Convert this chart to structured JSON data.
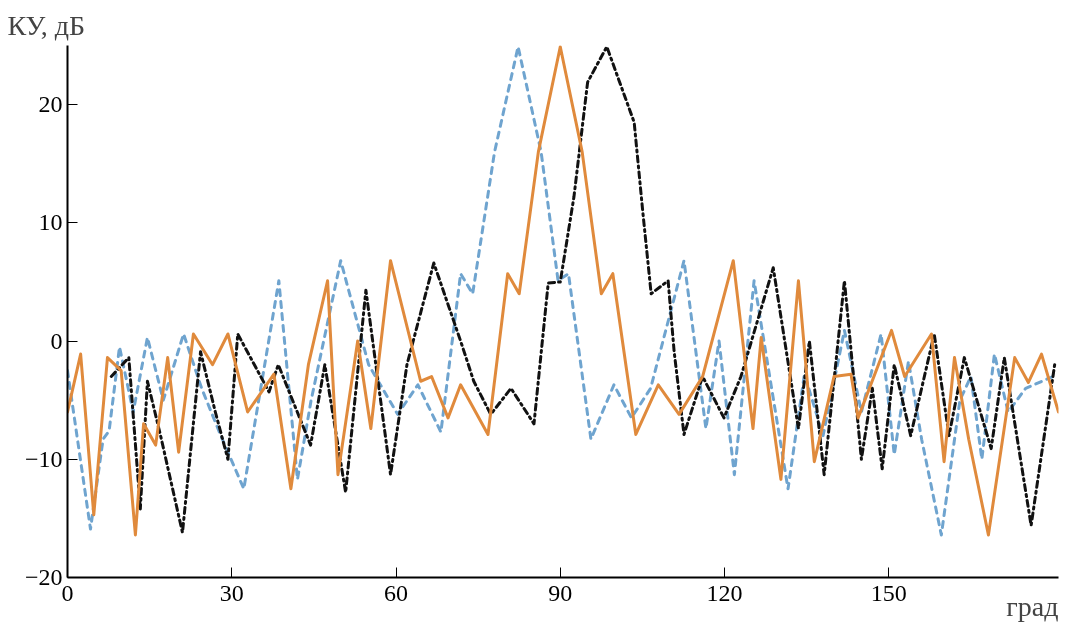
{
  "chart_data": {
    "type": "line",
    "xlabel": "град",
    "ylabel": "КУ, дБ",
    "xlim": [
      0,
      181
    ],
    "xticks": [
      0,
      30,
      60,
      90,
      120,
      150
    ],
    "ylim": [
      -20,
      25
    ],
    "yticks": [
      -20,
      -10,
      0,
      10,
      20
    ],
    "grid": false,
    "marker": "none",
    "series": [
      {
        "color": "#6fa4cf",
        "line_style": "dashed",
        "x": [
          0,
          4.2,
          6.5,
          7.6,
          9.5,
          12,
          14.6,
          17.5,
          21.2,
          24.5,
          28,
          32.2,
          38.6,
          42,
          44.5,
          49.9,
          55,
          60.3,
          64,
          68.2,
          71.8,
          74,
          78,
          82.3,
          86.5,
          89.6,
          91.5,
          95.6,
          99.8,
          103,
          106.5,
          112.6,
          116.6,
          119,
          121.8,
          125.4,
          131.6,
          134.6,
          138,
          141.9,
          145,
          148.6,
          151,
          153.6,
          156,
          159.6,
          163,
          165,
          167,
          169.3,
          171.8,
          175,
          180
        ],
        "values": [
          -2.5,
          -15.9,
          -8.3,
          -7.6,
          -0.5,
          -6,
          0.3,
          -5,
          0.6,
          -4,
          -8,
          -12.5,
          5.1,
          -11.7,
          -5,
          6.8,
          -2,
          -6.2,
          -3.7,
          -7.7,
          5.7,
          4,
          16,
          24.9,
          16,
          5.1,
          5.7,
          -8.3,
          -3.7,
          -6.5,
          -4,
          6.8,
          -7.4,
          0,
          -11.3,
          5.1,
          -12.5,
          -2.8,
          -8,
          0.9,
          -6,
          0.6,
          -9.6,
          -1.7,
          -8.3,
          -16.4,
          -5,
          -3,
          -10,
          -1.1,
          -6,
          -4,
          -3
        ]
      },
      {
        "color": "#111111",
        "line_style": "dashdot",
        "x": [
          8,
          11.2,
          13.3,
          14.6,
          17,
          21,
          24.3,
          27,
          29.3,
          31.1,
          36.8,
          38.5,
          44.4,
          47,
          50.8,
          54.5,
          59,
          62,
          66.9,
          71.8,
          74.2,
          77.3,
          81,
          85.2,
          87.8,
          90,
          92.5,
          95,
          98.5,
          103.5,
          105.1,
          106.6,
          109.7,
          110.8,
          112.6,
          116,
          119.9,
          123,
          128.9,
          133.5,
          135.5,
          138.2,
          141.9,
          145,
          147,
          148.8,
          151,
          154,
          158.3,
          161,
          163.8,
          168.7,
          171.1,
          176,
          180.3
        ],
        "values": [
          -3,
          -1.4,
          -14.2,
          -3.4,
          -8,
          -16.2,
          -0.9,
          -6,
          -10,
          0.6,
          -4.3,
          -2,
          -8.8,
          -2,
          -12.8,
          4.3,
          -11.3,
          -2,
          6.6,
          0,
          -3.4,
          -6.2,
          -4,
          -7,
          4.9,
          5,
          12.2,
          21.9,
          24.9,
          18.5,
          10.8,
          4,
          5.1,
          -0.9,
          -7.9,
          -3,
          -6.5,
          -3,
          6.2,
          -7.4,
          0,
          -11.3,
          5.1,
          -10,
          -4,
          -10.8,
          -2,
          -8,
          0.6,
          -8,
          -1.4,
          -9.1,
          -1.4,
          -15.6,
          -2
        ]
      },
      {
        "color": "#e08a3c",
        "line_style": "solid",
        "x": [
          0,
          2.4,
          4.8,
          7.3,
          9.8,
          12.4,
          13.9,
          16.1,
          18.3,
          20.3,
          23,
          26.5,
          29.3,
          32.9,
          37.7,
          40.8,
          44,
          47.5,
          49.4,
          53,
          55.4,
          59,
          64.5,
          66.5,
          69.5,
          71.8,
          76.8,
          80.4,
          82.5,
          86,
          90,
          94,
          97.5,
          99.6,
          103.8,
          107.9,
          111.7,
          116,
          121.6,
          125.2,
          126.7,
          130.3,
          133.5,
          136.4,
          140,
          143.1,
          144.4,
          150.5,
          152.9,
          157.8,
          160.1,
          162,
          164.6,
          168.2,
          173,
          175.5,
          177.9,
          181
        ],
        "values": [
          -6,
          -1.1,
          -14.7,
          -1.4,
          -2.5,
          -16.4,
          -7,
          -8.8,
          -1.4,
          -9.4,
          0.6,
          -2,
          0.6,
          -6,
          -2.8,
          -12.5,
          -2,
          5.1,
          -11.3,
          0,
          -7.4,
          6.8,
          -3.4,
          -3,
          -6.5,
          -3.7,
          -7.9,
          5.7,
          4,
          16,
          24.9,
          16,
          4,
          5.7,
          -7.9,
          -3.7,
          -6.2,
          -3,
          6.8,
          -7.4,
          0.3,
          -11.7,
          5.1,
          -10.2,
          -3,
          -2.8,
          -6.5,
          0.9,
          -3,
          0.6,
          -10.2,
          -1.4,
          -8.3,
          -16.4,
          -1.4,
          -3.5,
          -1.1,
          -6
        ]
      }
    ]
  }
}
